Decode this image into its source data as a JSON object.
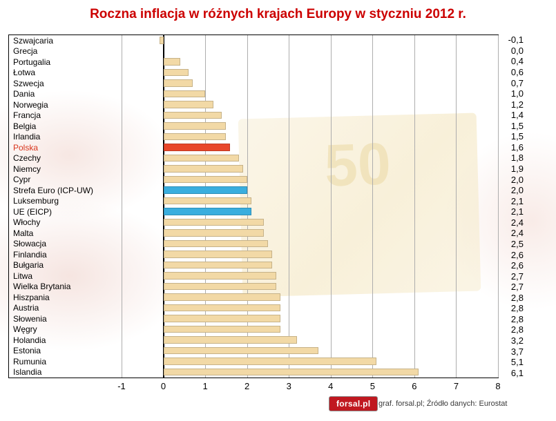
{
  "title": "Roczna inflacja w różnych krajach Europy w styczniu 2012 r.",
  "chart_data": {
    "type": "bar",
    "orientation": "horizontal",
    "title": "Roczna inflacja w różnych krajach Europy w styczniu 2012 r.",
    "xlim": [
      -1,
      8
    ],
    "xticks": [
      -1,
      0,
      1,
      2,
      3,
      4,
      5,
      6,
      7,
      8
    ],
    "grid": "vertical",
    "legend": "none",
    "rows": [
      {
        "label": "Szwajcaria",
        "value": -0.1,
        "display": "-0,1",
        "highlight": "none"
      },
      {
        "label": "Grecja",
        "value": 0.0,
        "display": "0,0",
        "highlight": "none"
      },
      {
        "label": "Portugalia",
        "value": 0.4,
        "display": "0,4",
        "highlight": "none"
      },
      {
        "label": "Łotwa",
        "value": 0.6,
        "display": "0,6",
        "highlight": "none"
      },
      {
        "label": "Szwecja",
        "value": 0.7,
        "display": "0,7",
        "highlight": "none"
      },
      {
        "label": "Dania",
        "value": 1.0,
        "display": "1,0",
        "highlight": "none"
      },
      {
        "label": "Norwegia",
        "value": 1.2,
        "display": "1,2",
        "highlight": "none"
      },
      {
        "label": "Francja",
        "value": 1.4,
        "display": "1,4",
        "highlight": "none"
      },
      {
        "label": "Belgia",
        "value": 1.5,
        "display": "1,5",
        "highlight": "none"
      },
      {
        "label": "Irlandia",
        "value": 1.5,
        "display": "1,5",
        "highlight": "none"
      },
      {
        "label": "Polska",
        "value": 1.6,
        "display": "1,6",
        "highlight": "polska"
      },
      {
        "label": "Czechy",
        "value": 1.8,
        "display": "1,8",
        "highlight": "none"
      },
      {
        "label": "Niemcy",
        "value": 1.9,
        "display": "1,9",
        "highlight": "none"
      },
      {
        "label": "Cypr",
        "value": 2.0,
        "display": "2,0",
        "highlight": "none"
      },
      {
        "label": "Strefa Euro (ICP-UW)",
        "value": 2.0,
        "display": "2,0",
        "highlight": "blue"
      },
      {
        "label": "Luksemburg",
        "value": 2.1,
        "display": "2,1",
        "highlight": "none"
      },
      {
        "label": "UE (EICP)",
        "value": 2.1,
        "display": "2,1",
        "highlight": "blue"
      },
      {
        "label": "Włochy",
        "value": 2.4,
        "display": "2,4",
        "highlight": "none"
      },
      {
        "label": "Malta",
        "value": 2.4,
        "display": "2,4",
        "highlight": "none"
      },
      {
        "label": "Słowacja",
        "value": 2.5,
        "display": "2,5",
        "highlight": "none"
      },
      {
        "label": "Finlandia",
        "value": 2.6,
        "display": "2,6",
        "highlight": "none"
      },
      {
        "label": "Bułgaria",
        "value": 2.6,
        "display": "2,6",
        "highlight": "none"
      },
      {
        "label": "Litwa",
        "value": 2.7,
        "display": "2,7",
        "highlight": "none"
      },
      {
        "label": "Wielka Brytania",
        "value": 2.7,
        "display": "2,7",
        "highlight": "none"
      },
      {
        "label": "Hiszpania",
        "value": 2.8,
        "display": "2,8",
        "highlight": "none"
      },
      {
        "label": "Austria",
        "value": 2.8,
        "display": "2,8",
        "highlight": "none"
      },
      {
        "label": "Słowenia",
        "value": 2.8,
        "display": "2,8",
        "highlight": "none"
      },
      {
        "label": "Węgry",
        "value": 2.8,
        "display": "2,8",
        "highlight": "none"
      },
      {
        "label": "Holandia",
        "value": 3.2,
        "display": "3,2",
        "highlight": "none"
      },
      {
        "label": "Estonia",
        "value": 3.7,
        "display": "3,7",
        "highlight": "none"
      },
      {
        "label": "Rumunia",
        "value": 5.1,
        "display": "5,1",
        "highlight": "none"
      },
      {
        "label": "Islandia",
        "value": 6.1,
        "display": "6,1",
        "highlight": "none"
      }
    ]
  },
  "colors": {
    "bar": "#f2d9a6",
    "polska": "#e8472b",
    "euro_blue": "#3aaede",
    "title_red": "#cc0000",
    "grid": "#adadad"
  },
  "watermark": {
    "note_text": "50"
  },
  "footer": {
    "logo_text": "forsal.pl",
    "credit": "graf. forsal.pl; Źródło danych: Eurostat"
  }
}
